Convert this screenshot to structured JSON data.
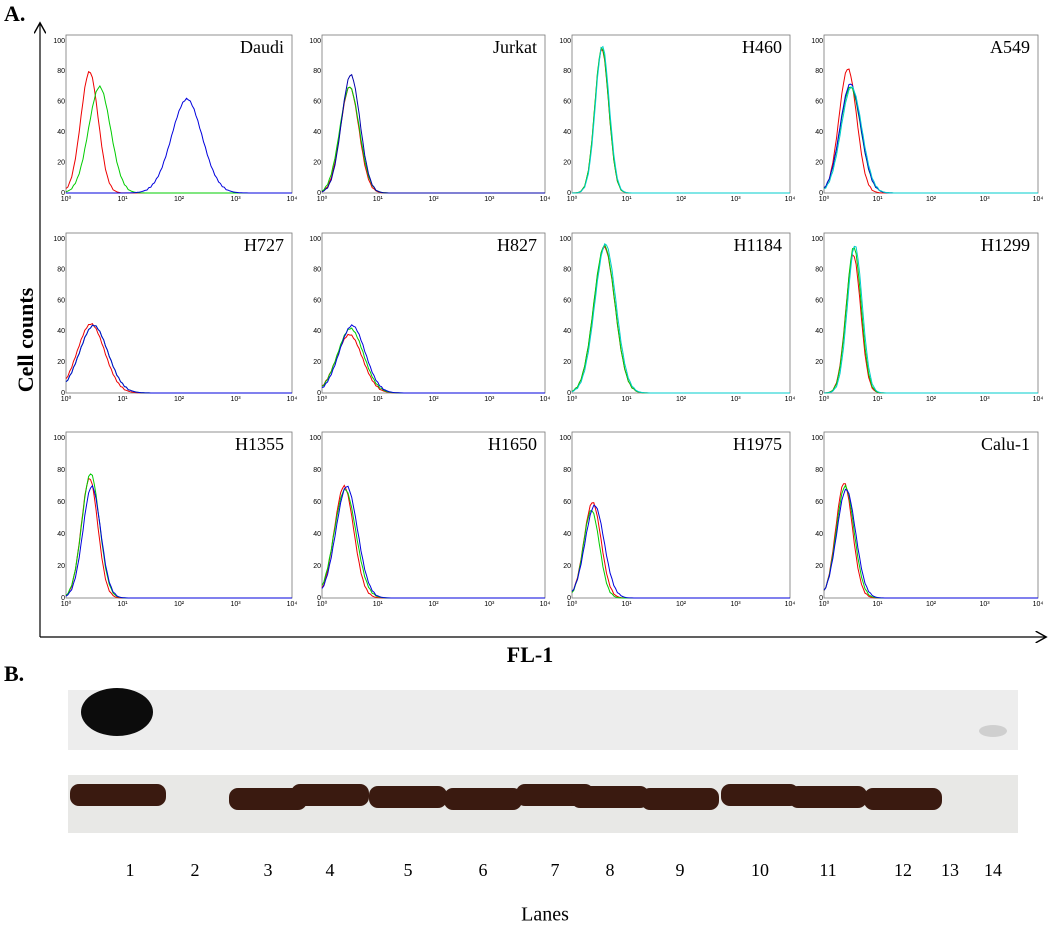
{
  "panel_a": {
    "label": "A.",
    "y_axis_label": "Cell counts",
    "x_axis_label": "FL-1",
    "x_tick_labels": [
      "10⁰",
      "10¹",
      "10²",
      "10³",
      "10⁴"
    ],
    "y_tick_labels": [
      "0",
      "20",
      "40",
      "60",
      "80",
      "100"
    ],
    "panels": [
      "Daudi",
      "Jurkat",
      "H460",
      "A549",
      "H727",
      "H827",
      "H1184",
      "H1299",
      "H1355",
      "H1650",
      "H1975",
      "Calu-1"
    ]
  },
  "panel_b": {
    "label": "B.",
    "lanes": [
      "1",
      "2",
      "3",
      "4",
      "5",
      "6",
      "7",
      "8",
      "9",
      "10",
      "11",
      "12",
      "13",
      "14"
    ],
    "x_axis_label": "Lanes"
  }
}
